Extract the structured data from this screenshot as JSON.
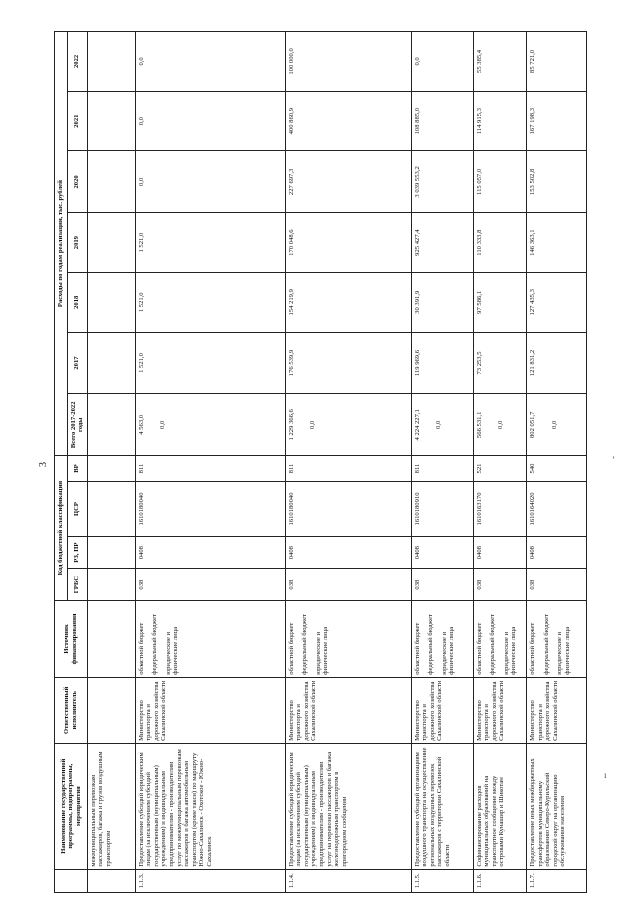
{
  "page_number": "3",
  "header": {
    "name_col": "Наименование государственной программы, подпрограммы, мероприятия",
    "executor_col": "Ответственный исполнитель",
    "source_col": "Источник финансирования",
    "code_group": "Код бюджетной классификации",
    "grbs": "ГРБС",
    "rz_pr": "РЗ, ПР",
    "csr": "ЦСР",
    "vr": "ВР",
    "expense_group": "Расходы по годам реализации, тыс. рублей",
    "total": "Всего 2017-2022 годы",
    "years": [
      "2017",
      "2018",
      "2019",
      "2020",
      "2021",
      "2022"
    ]
  },
  "continuation": {
    "name": "межмуниципальным перевозкам пассажиров, багажа и грузов воздушным транспортом"
  },
  "rows": [
    {
      "num": "1.1.3.",
      "name": "Предоставление субсидий юридическим лицам (за исключением субсидий государственным (муниципальным) учреждениям) и индивидуальным предпринимателям - производителям услуг по межмуниципальным перевозкам пассажиров и багажа автомобильным транспортом (кроме такси) по маршруту Южно-Сахалинск - Охотское - Южно-Сахалинск",
      "executor": "Министерство транспорта и дорожного хозяйства Сахалинской области",
      "sources": [
        "областной бюджет",
        "федеральный бюджет",
        "юридические и физические лица"
      ],
      "grbs": "038",
      "rz_pr": "0408",
      "csr": "1610180040",
      "vr": "811",
      "total": "4 563,0",
      "total_sub": "0,0",
      "y2017": "1 521,0",
      "y2018": "1 521,0",
      "y2019": "1 521,0",
      "y2020": "0,0",
      "y2021": "0,0",
      "y2022": "0,0"
    },
    {
      "num": "1.1.4.",
      "name": "Предоставление субсидий юридическим лицам (за исключением субсидий государственным (муниципальным) учреждениям) и индивидуальным предпринимателям - производителям услуг на перевозки пассажиров и багажа железнодорожным транспортом в пригородном сообщении",
      "executor": "Министерство транспорта и дорожного хозяйства Сахалинской области",
      "sources": [
        "областной бюджет",
        "федеральный бюджет",
        "юридические и физические лица"
      ],
      "grbs": "038",
      "rz_pr": "0408",
      "csr": "1610180040",
      "vr": "811",
      "total": "1 229 366,6",
      "total_sub": "0,0",
      "y2017": "176 539,9",
      "y2018": "154 219,9",
      "y2019": "170 048,6",
      "y2020": "227 697,3",
      "y2021": "400 860,9",
      "y2022": "100 000,0"
    },
    {
      "num": "1.1.5.",
      "name": "Предоставление субсидий организациям воздушного транспорта на осуществление региональных воздушных перевозок пассажиров с территории Сахалинской области",
      "executor": "Министерство транспорта и дорожного хозяйства Сахалинской области",
      "sources": [
        "областной бюджет",
        "федеральный бюджет",
        "юридические и физические лица"
      ],
      "grbs": "038",
      "rz_pr": "0408",
      "csr": "1610180910",
      "vr": "811",
      "total": "4 224 227,1",
      "total_sub": "0,0",
      "y2017": "119 969,6",
      "y2018": "30 391,9",
      "y2019": "925 427,4",
      "y2020": "3 039 553,2",
      "y2021": "108 885,0",
      "y2022": "0,0"
    },
    {
      "num": "1.1.6.",
      "name": "Софинансирование расходов муниципальных образований на транспортное сообщение между островами Кунашир и Шикотан",
      "executor": "Министерство транспорта и дорожного хозяйства Сахалинской области",
      "sources": [
        "областной бюджет",
        "федеральный бюджет",
        "юридические и физические лица"
      ],
      "grbs": "038",
      "rz_pr": "0408",
      "csr": "1610163170",
      "vr": "521",
      "total": "566 531,1",
      "total_sub": "0,0",
      "y2017": "73 253,5",
      "y2018": "97 586,1",
      "y2019": "110 333,8",
      "y2020": "115 057,0",
      "y2021": "114 915,3",
      "y2022": "55 385,4"
    },
    {
      "num": "1.1.7.",
      "name": "Предоставление иных межбюджетных трансфертов муниципальному образованию Северо-Курильский городской округ на организацию обслуживания населения",
      "executor": "Министерство транспорта и дорожного хозяйства Сахалинской области",
      "sources": [
        "областной бюджет",
        "федеральный бюджет",
        "юридические и физические лица"
      ],
      "grbs": "038",
      "rz_pr": "0408",
      "csr": "1610164020",
      "vr": "540",
      "total": "802 051,7",
      "total_sub": "0,0",
      "y2017": "121 831,2",
      "y2018": "127 435,3",
      "y2019": "146 363,1",
      "y2020": "153 502,8",
      "y2021": "167 198,3",
      "y2022": "85 721,0"
    }
  ]
}
